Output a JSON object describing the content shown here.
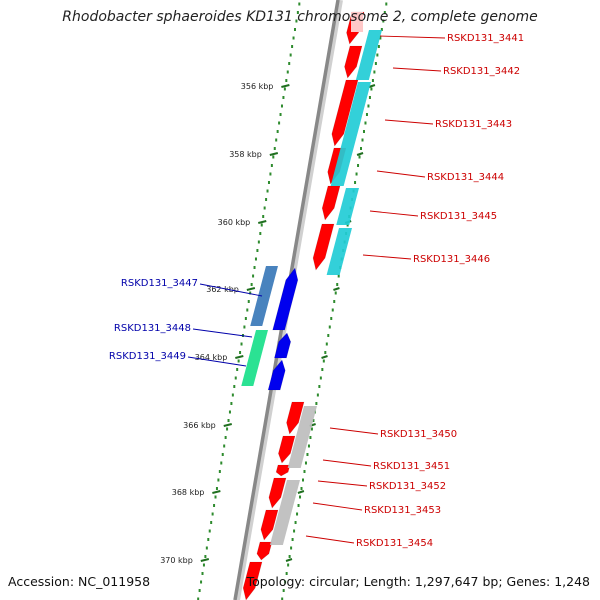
{
  "title": "Rhodobacter sphaeroides KD131 chromosome 2, complete genome",
  "footer": {
    "accession": "Accession: NC_011958",
    "summary": "Topology: circular; Length: 1,297,647 bp; Genes: 1,248"
  },
  "ticks": [
    "356 kbp",
    "358 kbp",
    "360 kbp",
    "362 kbp",
    "364 kbp",
    "366 kbp",
    "368 kbp",
    "370 kbp"
  ],
  "colors": {
    "forward_gene_label": "#cc0000",
    "reverse_gene_label": "#0000aa",
    "forward_strand_cds": "#ff0000",
    "reverse_strand_cds": "#0000ee",
    "cyan_feature": "#22ccd6",
    "steelblue_feature": "#3a78b8",
    "green_feature": "#19e08a",
    "gray_feature": "#bdbdbd",
    "backbone": "#888888",
    "tick_dots": "#2e8b2e"
  },
  "genes_forward": [
    "RSKD131_3441",
    "RSKD131_3442",
    "RSKD131_3443",
    "RSKD131_3444",
    "RSKD131_3445",
    "RSKD131_3446",
    "RSKD131_3450",
    "RSKD131_3451",
    "RSKD131_3452",
    "RSKD131_3453",
    "RSKD131_3454"
  ],
  "genes_reverse": [
    "RSKD131_3447",
    "RSKD131_3448",
    "RSKD131_3449"
  ]
}
